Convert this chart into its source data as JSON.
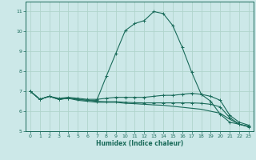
{
  "xlabel": "Humidex (Indice chaleur)",
  "background_color": "#cce8e8",
  "grid_color": "#b0d4cc",
  "line_color": "#1a6b5a",
  "xlim": [
    -0.5,
    23.5
  ],
  "ylim": [
    5,
    11.5
  ],
  "yticks": [
    5,
    6,
    7,
    8,
    9,
    10,
    11
  ],
  "xticks": [
    0,
    1,
    2,
    3,
    4,
    5,
    6,
    7,
    8,
    9,
    10,
    11,
    12,
    13,
    14,
    15,
    16,
    17,
    18,
    19,
    20,
    21,
    22,
    23
  ],
  "lines": [
    {
      "x": [
        0,
        1,
        2,
        3,
        4,
        5,
        6,
        7,
        8,
        9,
        10,
        11,
        12,
        13,
        14,
        15,
        16,
        17,
        18,
        19,
        20,
        21,
        22,
        23
      ],
      "y": [
        7.0,
        6.6,
        6.75,
        6.6,
        6.65,
        6.6,
        6.55,
        6.55,
        7.75,
        8.9,
        10.05,
        10.4,
        10.55,
        11.0,
        10.9,
        10.3,
        9.2,
        7.95,
        6.85,
        6.5,
        5.85,
        5.45,
        5.35,
        5.25
      ],
      "marker": "+"
    },
    {
      "x": [
        0,
        1,
        2,
        3,
        4,
        5,
        6,
        7,
        8,
        9,
        10,
        11,
        12,
        13,
        14,
        15,
        16,
        17,
        18,
        19,
        20,
        21,
        22,
        23
      ],
      "y": [
        7.0,
        6.6,
        6.75,
        6.65,
        6.7,
        6.65,
        6.6,
        6.6,
        6.65,
        6.7,
        6.7,
        6.7,
        6.7,
        6.75,
        6.8,
        6.8,
        6.85,
        6.9,
        6.85,
        6.75,
        6.55,
        5.8,
        5.45,
        5.3
      ],
      "marker": "+"
    },
    {
      "x": [
        0,
        1,
        2,
        3,
        4,
        5,
        6,
        7,
        8,
        9,
        10,
        11,
        12,
        13,
        14,
        15,
        16,
        17,
        18,
        19,
        20,
        21,
        22,
        23
      ],
      "y": [
        7.0,
        6.6,
        6.75,
        6.6,
        6.65,
        6.55,
        6.5,
        6.45,
        6.45,
        6.45,
        6.4,
        6.38,
        6.35,
        6.32,
        6.3,
        6.25,
        6.2,
        6.15,
        6.1,
        6.0,
        5.9,
        5.6,
        5.35,
        5.22
      ],
      "marker": null
    },
    {
      "x": [
        0,
        1,
        2,
        3,
        4,
        5,
        6,
        7,
        8,
        9,
        10,
        11,
        12,
        13,
        14,
        15,
        16,
        17,
        18,
        19,
        20,
        21,
        22,
        23
      ],
      "y": [
        7.0,
        6.6,
        6.75,
        6.6,
        6.65,
        6.6,
        6.55,
        6.5,
        6.48,
        6.48,
        6.45,
        6.43,
        6.42,
        6.42,
        6.42,
        6.42,
        6.42,
        6.42,
        6.4,
        6.35,
        6.22,
        5.68,
        5.36,
        5.22
      ],
      "marker": "+"
    }
  ]
}
